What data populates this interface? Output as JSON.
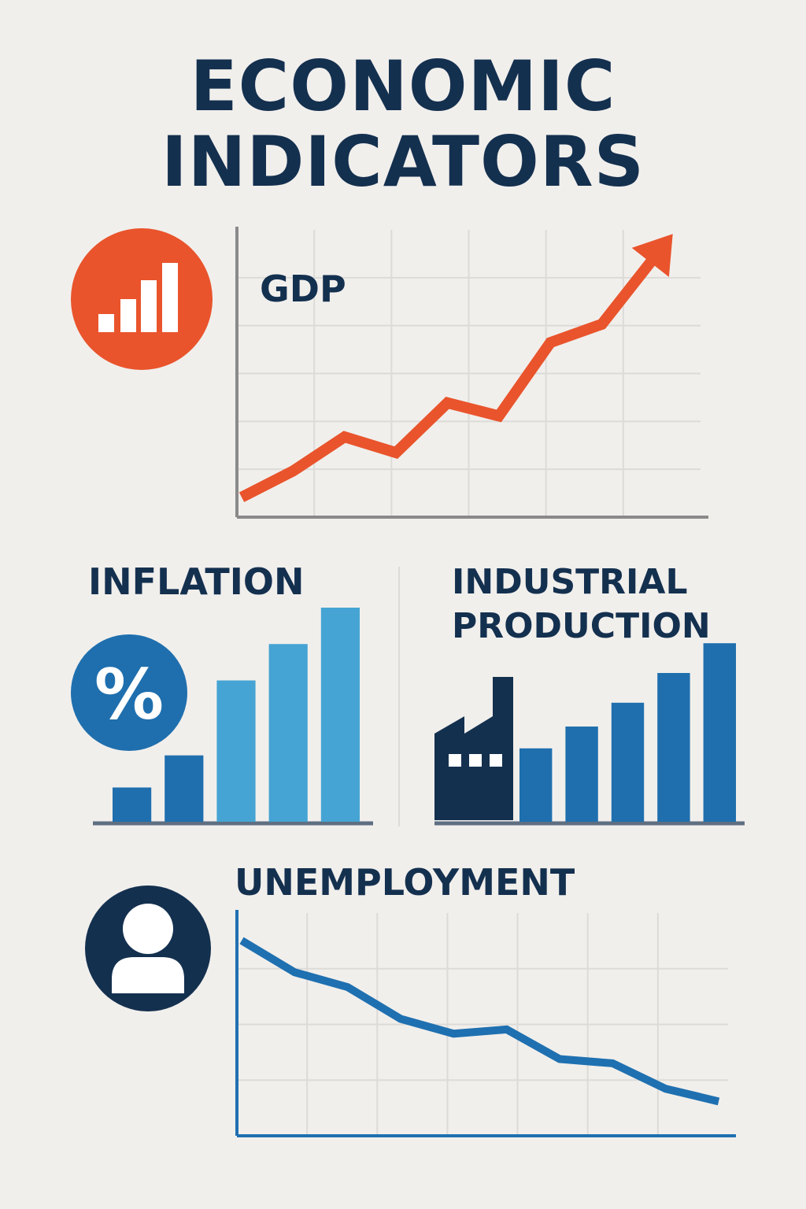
{
  "title": {
    "line1": "ECONOMIC",
    "line2": "INDICATORS"
  },
  "colors": {
    "background": "#f1efec",
    "title": "#14304f",
    "gdp": "#e9542c",
    "inflation_dark": "#1f6fae",
    "inflation_light": "#45a4d3",
    "industrial": "#1f6fae",
    "factory": "#14304f",
    "unemployment": "#1f70b0",
    "grid": "#dddbd8",
    "axis": "#8a8a8a"
  },
  "icons": {
    "gdp": "bar-chart-icon",
    "inflation": "percent-icon",
    "industrial": "factory-icon",
    "unemployment": "person-icon"
  },
  "chart_data": [
    {
      "id": "gdp",
      "type": "line",
      "title": "GDP",
      "trend": "up",
      "arrow": true,
      "x": [
        0,
        1,
        2,
        3,
        4,
        5,
        6,
        7,
        8
      ],
      "values": [
        0.4,
        1.4,
        2.7,
        2.1,
        4.0,
        3.5,
        6.3,
        7.0,
        9.5
      ],
      "ylim": [
        0,
        10
      ],
      "grid": true
    },
    {
      "id": "inflation",
      "type": "bar",
      "title": "INFLATION",
      "icon": "percent-icon",
      "values": [
        1.6,
        3.1,
        6.6,
        8.3,
        10.0
      ],
      "ylim": [
        0,
        10
      ],
      "grid": false
    },
    {
      "id": "industrial",
      "type": "bar",
      "title": "INDUSTRIAL PRODUCTION",
      "title_lines": [
        "INDUSTRIAL",
        "PRODUCTION"
      ],
      "icon": "factory-icon",
      "values": [
        3.7,
        4.8,
        6.0,
        7.5,
        9.0
      ],
      "ylim": [
        0,
        10
      ],
      "grid": false
    },
    {
      "id": "unemployment",
      "type": "line",
      "title": "UNEMPLOYMENT",
      "trend": "down",
      "x": [
        0,
        1,
        2,
        3,
        4,
        5,
        6,
        7,
        8,
        9
      ],
      "values": [
        9.0,
        7.5,
        6.8,
        5.3,
        4.6,
        4.8,
        3.4,
        3.2,
        2.0,
        1.4
      ],
      "ylim": [
        0,
        10
      ],
      "grid": true
    }
  ]
}
